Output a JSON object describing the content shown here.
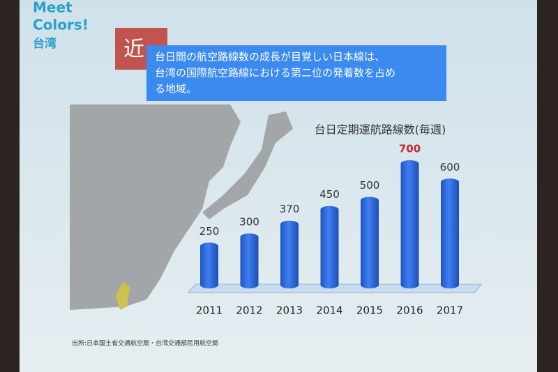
{
  "brand": {
    "line1": "Meet",
    "line2": "Colors!",
    "line3": "台湾"
  },
  "badge": "近",
  "callout": {
    "lines": [
      "台日間の航空路線数の成長が目覚しい日本線は、",
      "台湾の国際航空路線における第二位の発着数を占め",
      "る地域。"
    ]
  },
  "source": "出所:日本国土省交通航空局・台湾交通部民用航空局",
  "chart_data": {
    "type": "bar",
    "title": "台日定期運航路線数(毎週)",
    "categories": [
      "2011",
      "2012",
      "2013",
      "2014",
      "2015",
      "2016",
      "2017"
    ],
    "values": [
      250,
      300,
      370,
      450,
      500,
      700,
      600
    ],
    "color": "#2f6ad8",
    "value_label_colors": [
      "#333333",
      "#333333",
      "#333333",
      "#333333",
      "#333333",
      "#c0282d",
      "#333333"
    ]
  }
}
